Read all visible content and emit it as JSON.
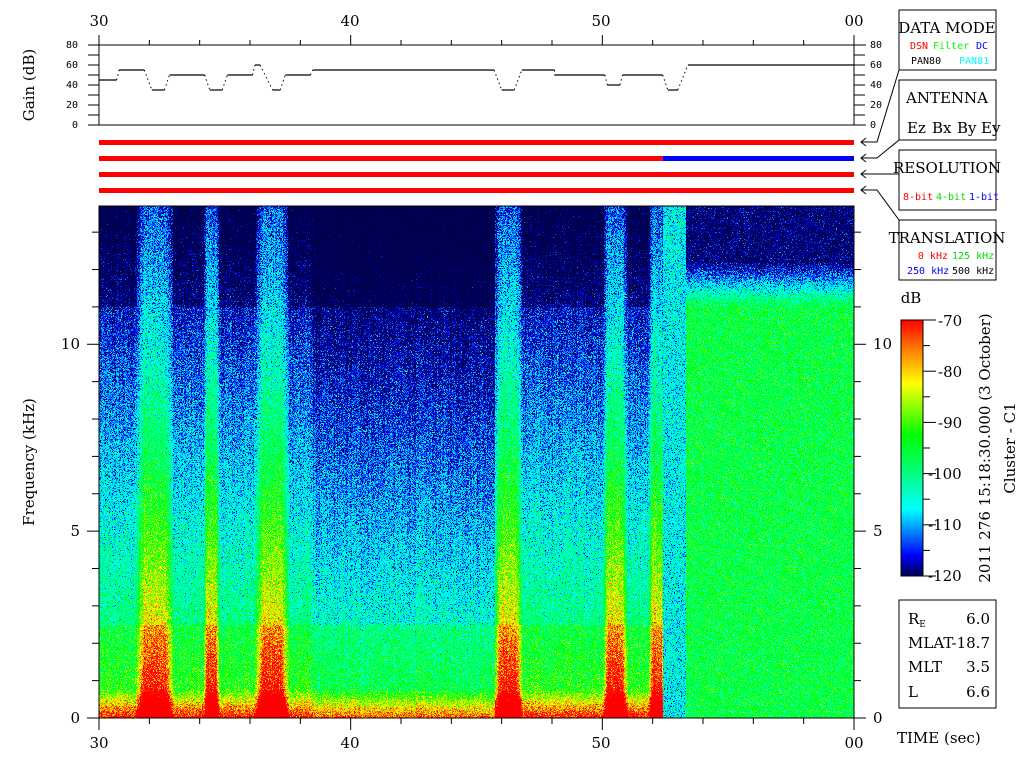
{
  "chart_data": [
    {
      "type": "heatmap",
      "title": "",
      "xlabel": "TIME (sec)",
      "ylabel": "Frequency (kHz)",
      "x_tick_labels": [
        "30",
        "40",
        "50",
        "00"
      ],
      "x_range_sec": [
        30,
        60
      ],
      "y_ticks": [
        0,
        5,
        10
      ],
      "ylim": [
        0,
        13.7
      ],
      "colorbar": {
        "label": "dB",
        "range": [
          -120,
          -70
        ],
        "ticks": [
          -70,
          -80,
          -90,
          -100,
          -110,
          -120
        ],
        "colormap": "jet"
      },
      "grid": false
    },
    {
      "type": "line",
      "ylabel": "Gain (dB)",
      "y_ticks": [
        0,
        20,
        40,
        60,
        80
      ],
      "ylim": [
        0,
        80
      ],
      "x_range_sec": [
        30,
        60
      ],
      "segments": [
        {
          "t0": 30.0,
          "t1": 30.7,
          "gain": 45
        },
        {
          "t0": 30.8,
          "t1": 31.8,
          "gain": 55
        },
        {
          "t0": 32.1,
          "t1": 32.6,
          "gain": 35
        },
        {
          "t0": 32.8,
          "t1": 34.2,
          "gain": 50
        },
        {
          "t0": 34.4,
          "t1": 34.9,
          "gain": 35
        },
        {
          "t0": 35.1,
          "t1": 36.1,
          "gain": 50
        },
        {
          "t0": 36.2,
          "t1": 36.4,
          "gain": 60
        },
        {
          "t0": 36.9,
          "t1": 37.2,
          "gain": 35
        },
        {
          "t0": 37.4,
          "t1": 38.4,
          "gain": 50
        },
        {
          "t0": 38.5,
          "t1": 45.7,
          "gain": 55
        },
        {
          "t0": 46.0,
          "t1": 46.5,
          "gain": 35
        },
        {
          "t0": 46.8,
          "t1": 48.1,
          "gain": 55
        },
        {
          "t0": 48.1,
          "t1": 50.1,
          "gain": 50
        },
        {
          "t0": 50.2,
          "t1": 50.7,
          "gain": 40
        },
        {
          "t0": 50.8,
          "t1": 52.4,
          "gain": 50
        },
        {
          "t0": 52.6,
          "t1": 53.0,
          "gain": 35
        },
        {
          "t0": 53.4,
          "t1": 60.0,
          "gain": 60
        }
      ]
    }
  ],
  "status_bars": [
    {
      "name": "data-mode",
      "spans": [
        {
          "t0": 30,
          "t1": 60,
          "value": "DSN"
        }
      ]
    },
    {
      "name": "antenna",
      "spans": [
        {
          "t0": 30,
          "t1": 52.4,
          "value": "Ez"
        },
        {
          "t0": 52.4,
          "t1": 60,
          "value": "By"
        }
      ]
    },
    {
      "name": "resolution",
      "spans": [
        {
          "t0": 30,
          "t1": 60,
          "value": "8-bit"
        }
      ]
    },
    {
      "name": "translation",
      "spans": [
        {
          "t0": 30,
          "t1": 60,
          "value": "0 kHz"
        }
      ]
    }
  ],
  "legend": {
    "data_mode": {
      "title": "DATA MODE",
      "items": [
        {
          "label": "DSN",
          "color": "#ff0000"
        },
        {
          "label": "Filter",
          "color": "#00ff00"
        },
        {
          "label": "DC",
          "color": "#0000ff"
        },
        {
          "label": "PAN80",
          "color": "#000000"
        },
        {
          "label": "PAN81",
          "color": "#00ffff"
        }
      ]
    },
    "antenna": {
      "title": "ANTENNA",
      "items": [
        {
          "label": "Ez",
          "color": "#ff0000"
        },
        {
          "label": "Bx",
          "color": "#00ff00"
        },
        {
          "label": "By",
          "color": "#0000ff"
        },
        {
          "label": "Ey",
          "color": "#000000"
        }
      ]
    },
    "resolution": {
      "title": "RESOLUTION",
      "items": [
        {
          "label": "8-bit",
          "color": "#ff0000"
        },
        {
          "label": "4-bit",
          "color": "#00ff00"
        },
        {
          "label": "1-bit",
          "color": "#0000ff"
        }
      ]
    },
    "translation": {
      "title": "TRANSLATION",
      "items": [
        {
          "label": "0 kHz",
          "color": "#ff0000"
        },
        {
          "label": "125 kHz",
          "color": "#00ff00"
        },
        {
          "label": "250 kHz",
          "color": "#0000ff"
        },
        {
          "label": "500 kHz",
          "color": "#000000"
        }
      ]
    }
  },
  "caption": {
    "datetime": "2011 276 15:18:30.000 (3 October)",
    "spacecraft": "Cluster - C1"
  },
  "orbit": [
    {
      "label": "R",
      "sub": "E",
      "value": "6.0"
    },
    {
      "label": "MLAT",
      "value": "-18.7"
    },
    {
      "label": "MLT",
      "value": "3.5"
    },
    {
      "label": "L",
      "value": "6.6"
    }
  ],
  "labels": {
    "gain_axis": "Gain (dB)",
    "freq_axis": "Frequency (kHz)",
    "time_axis": "TIME (sec)",
    "colorbar": "dB"
  }
}
